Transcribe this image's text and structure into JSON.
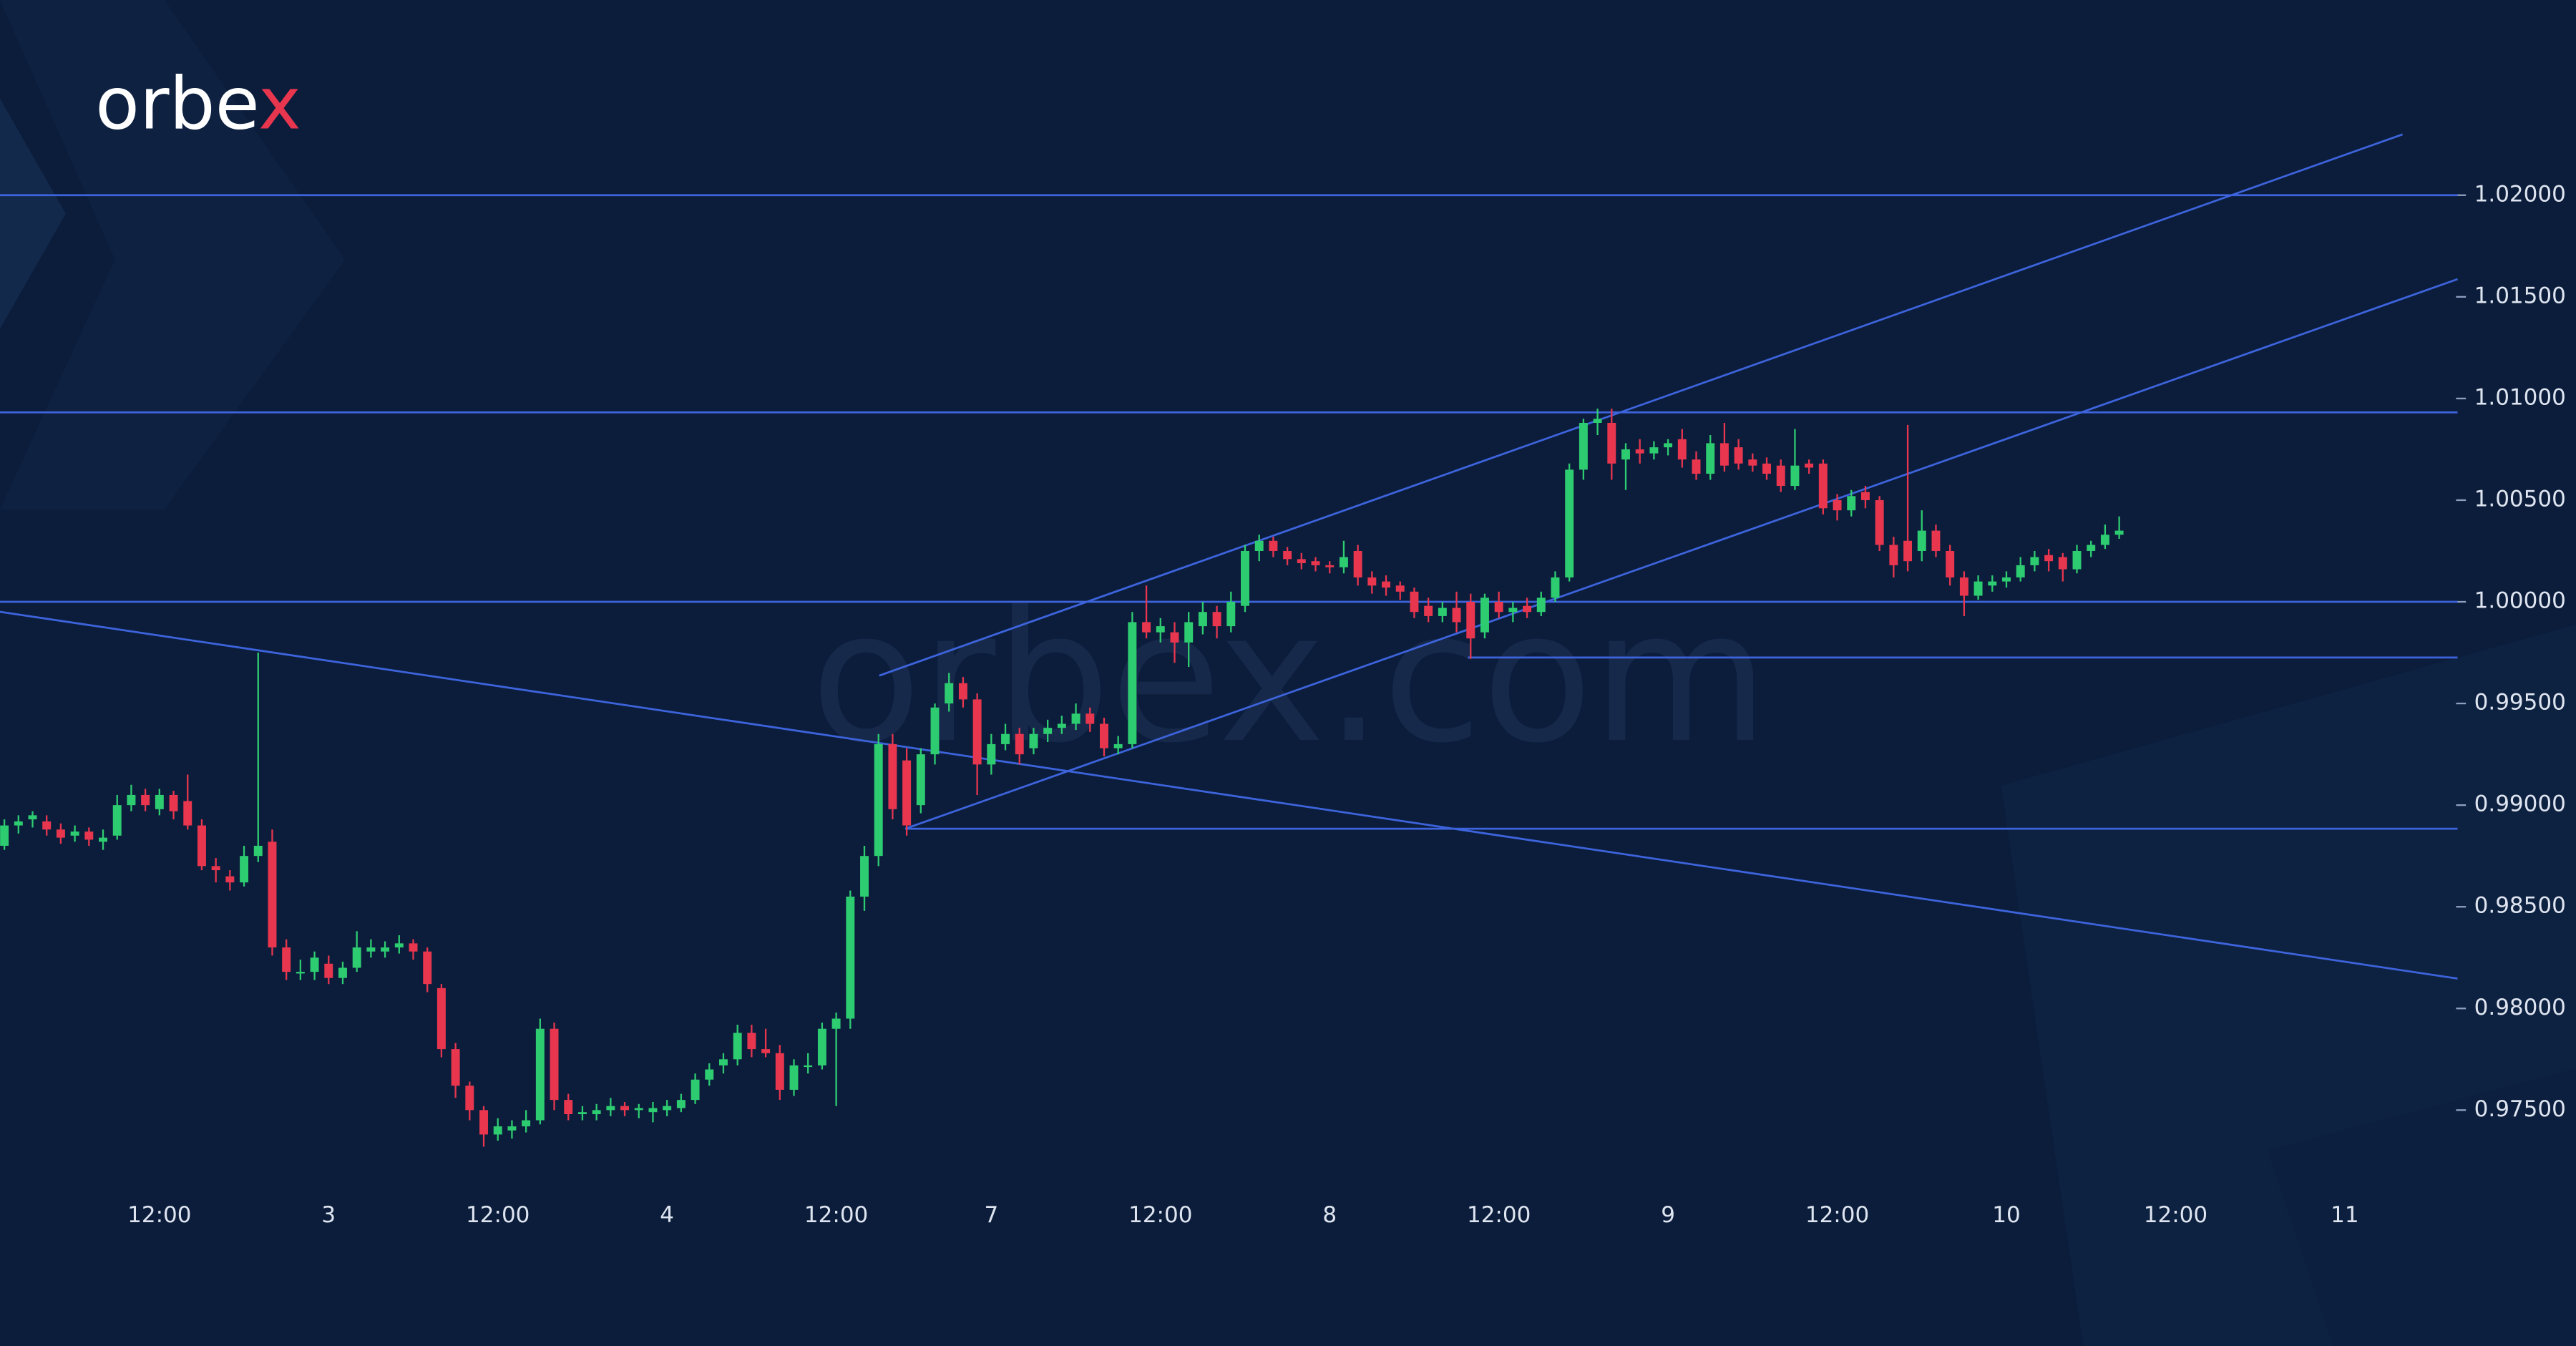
{
  "chart_data": {
    "type": "candlestick",
    "logo": "orbex",
    "watermark": "orbex.com",
    "up_color": "#2ecc71",
    "down_color": "#e8364f",
    "line_color": "#3d64dc",
    "background": "#0b1d3b",
    "xlim": [
      0.69,
      183.4
    ],
    "ylim": [
      0.9714,
      1.0296
    ],
    "xticks": [
      {
        "value": 12,
        "label": "12:00"
      },
      {
        "value": 24,
        "label": "3"
      },
      {
        "value": 36,
        "label": "12:00"
      },
      {
        "value": 48,
        "label": "4"
      },
      {
        "value": 60,
        "label": "12:00"
      },
      {
        "value": 71,
        "label": "7"
      },
      {
        "value": 83,
        "label": "12:00"
      },
      {
        "value": 95,
        "label": "8"
      },
      {
        "value": 107,
        "label": "12:00"
      },
      {
        "value": 119,
        "label": "9"
      },
      {
        "value": 131,
        "label": "12:00"
      },
      {
        "value": 143,
        "label": "10"
      },
      {
        "value": 155,
        "label": "12:00"
      },
      {
        "value": 167,
        "label": "11"
      }
    ],
    "yticks": [
      {
        "value": 0.975,
        "label": "0.97500"
      },
      {
        "value": 0.98,
        "label": "0.98000"
      },
      {
        "value": 0.985,
        "label": "0.98500"
      },
      {
        "value": 0.99,
        "label": "0.99000"
      },
      {
        "value": 0.995,
        "label": "0.99500"
      },
      {
        "value": 1.0,
        "label": "1.00000"
      },
      {
        "value": 1.005,
        "label": "1.00500"
      },
      {
        "value": 1.01,
        "label": "1.01000"
      },
      {
        "value": 1.015,
        "label": "1.01500"
      },
      {
        "value": 1.02,
        "label": "1.02000"
      }
    ],
    "x": [
      1,
      2,
      3,
      4,
      5,
      6,
      7,
      8,
      9,
      10,
      11,
      12,
      13,
      14,
      15,
      16,
      17,
      18,
      19,
      20,
      21,
      22,
      23,
      24,
      25,
      26,
      27,
      28,
      29,
      30,
      31,
      32,
      33,
      34,
      35,
      36,
      37,
      38,
      39,
      40,
      41,
      42,
      43,
      44,
      45,
      46,
      47,
      48,
      49,
      50,
      51,
      52,
      53,
      54,
      55,
      56,
      57,
      58,
      59,
      60,
      61,
      62,
      63,
      64,
      65,
      66,
      67,
      68,
      69,
      70,
      71,
      72,
      73,
      74,
      75,
      76,
      77,
      78,
      79,
      80,
      81,
      82,
      83,
      84,
      85,
      86,
      87,
      88,
      89,
      90,
      91,
      92,
      93,
      94,
      95,
      96,
      97,
      98,
      99,
      100,
      101,
      102,
      103,
      104,
      105,
      106,
      107,
      108,
      109,
      110,
      111,
      112,
      113,
      114,
      115,
      116,
      117,
      118,
      119,
      120,
      121,
      122,
      123,
      124,
      125,
      126,
      127,
      128,
      129,
      130,
      131,
      132,
      133,
      134,
      135,
      136,
      137,
      138,
      139,
      140,
      141,
      142,
      143,
      144,
      145,
      146,
      147,
      148,
      149,
      150,
      151
    ],
    "open": [
      0.988,
      0.989,
      0.9893,
      0.9892,
      0.9888,
      0.9885,
      0.9887,
      0.9882,
      0.9885,
      0.99,
      0.9905,
      0.9898,
      0.9905,
      0.9902,
      0.989,
      0.987,
      0.9865,
      0.9862,
      0.9875,
      0.9882,
      0.983,
      0.9818,
      0.9818,
      0.9822,
      0.9815,
      0.982,
      0.9828,
      0.9828,
      0.983,
      0.9832,
      0.9828,
      0.981,
      0.978,
      0.9762,
      0.975,
      0.9738,
      0.974,
      0.9742,
      0.9745,
      0.979,
      0.9755,
      0.9748,
      0.9748,
      0.975,
      0.9752,
      0.975,
      0.9749,
      0.975,
      0.9751,
      0.9755,
      0.9765,
      0.9772,
      0.9775,
      0.9788,
      0.978,
      0.9778,
      0.976,
      0.9772,
      0.9772,
      0.979,
      0.9795,
      0.9855,
      0.9875,
      0.993,
      0.9922,
      0.99,
      0.9925,
      0.995,
      0.996,
      0.9952,
      0.992,
      0.993,
      0.9935,
      0.9928,
      0.9935,
      0.9938,
      0.994,
      0.9945,
      0.994,
      0.9928,
      0.993,
      0.999,
      0.9985,
      0.9985,
      0.998,
      0.9988,
      0.9995,
      0.9988,
      0.9998,
      1.0025,
      1.003,
      1.0025,
      1.0021,
      1.002,
      1.0018,
      1.0017,
      1.0025,
      1.0012,
      1.001,
      1.0008,
      1.0005,
      0.9998,
      0.9993,
      0.9997,
      1.0,
      0.9985,
      1.0,
      0.9995,
      0.9998,
      0.9995,
      1.0002,
      1.0012,
      1.0065,
      1.0088,
      1.0088,
      1.007,
      1.0075,
      1.0073,
      1.0076,
      1.008,
      1.007,
      1.0063,
      1.0078,
      1.0076,
      1.007,
      1.0068,
      1.0067,
      1.0057,
      1.0068,
      1.0068,
      1.005,
      1.0045,
      1.0054,
      1.005,
      1.0028,
      1.003,
      1.0025,
      1.0035,
      1.0025,
      1.0012,
      1.0003,
      1.0008,
      1.001,
      1.0012,
      1.0018,
      1.0023,
      1.0022,
      1.0016,
      1.0025,
      1.0028,
      1.0033
    ],
    "high": [
      0.9893,
      0.9895,
      0.9897,
      0.9895,
      0.9891,
      0.989,
      0.9889,
      0.9888,
      0.9905,
      0.991,
      0.9908,
      0.9908,
      0.9907,
      0.9915,
      0.9893,
      0.9874,
      0.9868,
      0.988,
      0.9975,
      0.9888,
      0.9834,
      0.9824,
      0.9828,
      0.9826,
      0.9823,
      0.9838,
      0.9834,
      0.9833,
      0.9836,
      0.9834,
      0.983,
      0.9812,
      0.9783,
      0.9764,
      0.9752,
      0.9746,
      0.9745,
      0.975,
      0.9795,
      0.9793,
      0.9758,
      0.9752,
      0.9753,
      0.9756,
      0.9754,
      0.9753,
      0.9754,
      0.9755,
      0.9758,
      0.9768,
      0.9773,
      0.9778,
      0.9792,
      0.9792,
      0.979,
      0.9782,
      0.9775,
      0.9778,
      0.9793,
      0.9798,
      0.9858,
      0.988,
      0.9935,
      0.9935,
      0.9928,
      0.9928,
      0.995,
      0.9965,
      0.9963,
      0.9955,
      0.9935,
      0.994,
      0.9938,
      0.9938,
      0.9942,
      0.9944,
      0.995,
      0.9948,
      0.9943,
      0.9934,
      0.9995,
      1.0008,
      0.9992,
      0.999,
      0.9995,
      1.0,
      0.9998,
      1.0005,
      1.0028,
      1.0033,
      1.0032,
      1.0027,
      1.0024,
      1.0022,
      1.002,
      1.003,
      1.0028,
      1.0015,
      1.0013,
      1.001,
      1.0007,
      1.0002,
      1.0,
      1.0005,
      1.0004,
      1.0004,
      1.0005,
      1.0,
      1.0002,
      1.0005,
      1.0015,
      1.0068,
      1.009,
      1.0095,
      1.0095,
      1.0078,
      1.008,
      1.0079,
      1.008,
      1.0085,
      1.0074,
      1.0082,
      1.0088,
      1.008,
      1.0073,
      1.0071,
      1.007,
      1.0085,
      1.007,
      1.007,
      1.0053,
      1.0055,
      1.0057,
      1.0052,
      1.0032,
      1.0087,
      1.0045,
      1.0038,
      1.0028,
      1.0015,
      1.0013,
      1.0013,
      1.0015,
      1.0022,
      1.0025,
      1.0026,
      1.0024,
      1.0028,
      1.003,
      1.0038,
      1.0042
    ],
    "low": [
      0.9878,
      0.9886,
      0.9889,
      0.9885,
      0.9881,
      0.9882,
      0.988,
      0.9878,
      0.9883,
      0.9897,
      0.9897,
      0.9895,
      0.9893,
      0.9888,
      0.9868,
      0.9862,
      0.9858,
      0.986,
      0.9872,
      0.9826,
      0.9814,
      0.9814,
      0.9814,
      0.9812,
      0.9812,
      0.9818,
      0.9825,
      0.9825,
      0.9827,
      0.9824,
      0.9808,
      0.9776,
      0.9756,
      0.9745,
      0.9732,
      0.9735,
      0.9736,
      0.9739,
      0.9743,
      0.975,
      0.9745,
      0.9745,
      0.9745,
      0.9747,
      0.9747,
      0.9746,
      0.9744,
      0.9747,
      0.9749,
      0.9753,
      0.9762,
      0.9768,
      0.9772,
      0.9776,
      0.9776,
      0.9755,
      0.9757,
      0.9768,
      0.977,
      0.9752,
      0.979,
      0.9848,
      0.987,
      0.9893,
      0.9885,
      0.9896,
      0.992,
      0.9946,
      0.9948,
      0.9905,
      0.9915,
      0.9927,
      0.992,
      0.9925,
      0.9931,
      0.9935,
      0.9937,
      0.9936,
      0.9924,
      0.9925,
      0.9928,
      0.9982,
      0.998,
      0.997,
      0.9968,
      0.9984,
      0.9982,
      0.9985,
      0.9995,
      1.002,
      1.0022,
      1.0018,
      1.0016,
      1.0015,
      1.0014,
      1.0014,
      1.0008,
      1.0004,
      1.0003,
      1.0001,
      0.9992,
      0.999,
      0.999,
      0.9985,
      0.9972,
      0.9982,
      0.9992,
      0.999,
      0.9992,
      0.9993,
      1.0,
      1.001,
      1.006,
      1.0082,
      1.006,
      1.0055,
      1.0068,
      1.007,
      1.0072,
      1.0066,
      1.006,
      1.006,
      1.0064,
      1.0065,
      1.0064,
      1.006,
      1.0054,
      1.0055,
      1.0063,
      1.0043,
      1.004,
      1.0042,
      1.0046,
      1.0025,
      1.0012,
      1.0015,
      1.002,
      1.0022,
      1.0008,
      0.9993,
      1.0001,
      1.0005,
      1.0007,
      1.001,
      1.0015,
      1.0015,
      1.001,
      1.0014,
      1.0022,
      1.0026,
      1.0031
    ],
    "close": [
      0.989,
      0.9892,
      0.9895,
      0.9888,
      0.9884,
      0.9887,
      0.9883,
      0.9884,
      0.99,
      0.9905,
      0.99,
      0.9905,
      0.9897,
      0.989,
      0.987,
      0.9868,
      0.9862,
      0.9875,
      0.988,
      0.983,
      0.9818,
      0.9818,
      0.9825,
      0.9815,
      0.982,
      0.983,
      0.983,
      0.983,
      0.9832,
      0.9828,
      0.9812,
      0.978,
      0.9762,
      0.975,
      0.9738,
      0.9742,
      0.9742,
      0.9745,
      0.979,
      0.9755,
      0.9748,
      0.9749,
      0.975,
      0.9752,
      0.975,
      0.9751,
      0.9751,
      0.9752,
      0.9755,
      0.9765,
      0.977,
      0.9775,
      0.9788,
      0.978,
      0.9778,
      0.976,
      0.9772,
      0.9772,
      0.979,
      0.9795,
      0.9855,
      0.9875,
      0.993,
      0.9898,
      0.989,
      0.9925,
      0.9948,
      0.996,
      0.9952,
      0.992,
      0.993,
      0.9935,
      0.9925,
      0.9935,
      0.9938,
      0.994,
      0.9945,
      0.994,
      0.9928,
      0.993,
      0.999,
      0.9985,
      0.9988,
      0.998,
      0.999,
      0.9995,
      0.9988,
      1.0,
      1.0025,
      1.003,
      1.0025,
      1.0021,
      1.0019,
      1.0018,
      1.0017,
      1.0022,
      1.0012,
      1.0008,
      1.0007,
      1.0005,
      0.9995,
      0.9993,
      0.9997,
      0.999,
      0.9982,
      1.0002,
      0.9995,
      0.9997,
      0.9995,
      1.0002,
      1.0012,
      1.0065,
      1.0088,
      1.009,
      1.0068,
      1.0075,
      1.0073,
      1.0076,
      1.0078,
      1.007,
      1.0063,
      1.0078,
      1.0067,
      1.0068,
      1.0067,
      1.0063,
      1.0057,
      1.0067,
      1.0066,
      1.0046,
      1.0045,
      1.0052,
      1.005,
      1.0028,
      1.0018,
      1.002,
      1.0035,
      1.0025,
      1.0012,
      1.0003,
      1.001,
      1.001,
      1.0012,
      1.0018,
      1.0022,
      1.002,
      1.0016,
      1.0025,
      1.0028,
      1.0033,
      1.0035
    ],
    "lines": [
      {
        "x": [
          0.69,
          175.0
        ],
        "y": [
          1.02,
          1.02
        ]
      },
      {
        "x": [
          0.69,
          175.0
        ],
        "y": [
          1.00932,
          1.00932
        ]
      },
      {
        "x": [
          0.69,
          175.0
        ],
        "y": [
          1.0,
          1.0
        ]
      },
      {
        "x": [
          104.8,
          175.0
        ],
        "y": [
          0.99726,
          0.99726
        ]
      },
      {
        "x": [
          64.9,
          175.0
        ],
        "y": [
          0.98884,
          0.98884
        ]
      },
      {
        "x": [
          0.69,
          175.0
        ],
        "y": [
          0.99951,
          0.98147
        ]
      },
      {
        "x": [
          63.05,
          171.1
        ],
        "y": [
          0.99637,
          1.02299
        ]
      },
      {
        "x": [
          64.9,
          175.0
        ],
        "y": [
          0.98884,
          1.01587
        ]
      }
    ]
  }
}
